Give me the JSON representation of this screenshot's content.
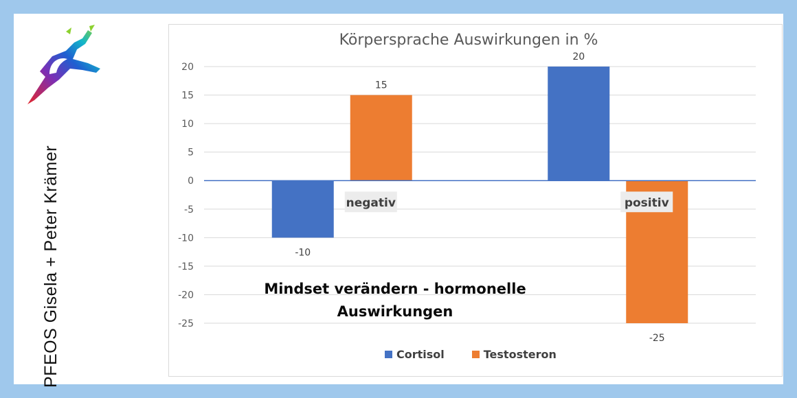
{
  "side_text": "PFEOS Gisela + Peter Krämer",
  "overlay_text": [
    "Mindset verändern - hormonelle",
    "Auswirkungen"
  ],
  "colors": {
    "background": "#9fc8ec",
    "cortisol": "#4472c4",
    "testosteron": "#ed7d31"
  },
  "icons": {
    "logo": "pfeos-logo-icon"
  },
  "chart_data": {
    "type": "bar",
    "title": "Körpersprache Auswirkungen in %",
    "categories": [
      "negativ",
      "positiv"
    ],
    "series": [
      {
        "name": "Cortisol",
        "values": [
          -10,
          20
        ],
        "color": "#4472c4"
      },
      {
        "name": "Testosteron",
        "values": [
          15,
          -25
        ],
        "color": "#ed7d31"
      }
    ],
    "ylim": [
      -25,
      20
    ],
    "yticks": [
      20,
      15,
      10,
      5,
      0,
      -5,
      -10,
      -15,
      -20,
      -25
    ],
    "grid": true,
    "legend": "bottom",
    "xlabel": "",
    "ylabel": ""
  }
}
